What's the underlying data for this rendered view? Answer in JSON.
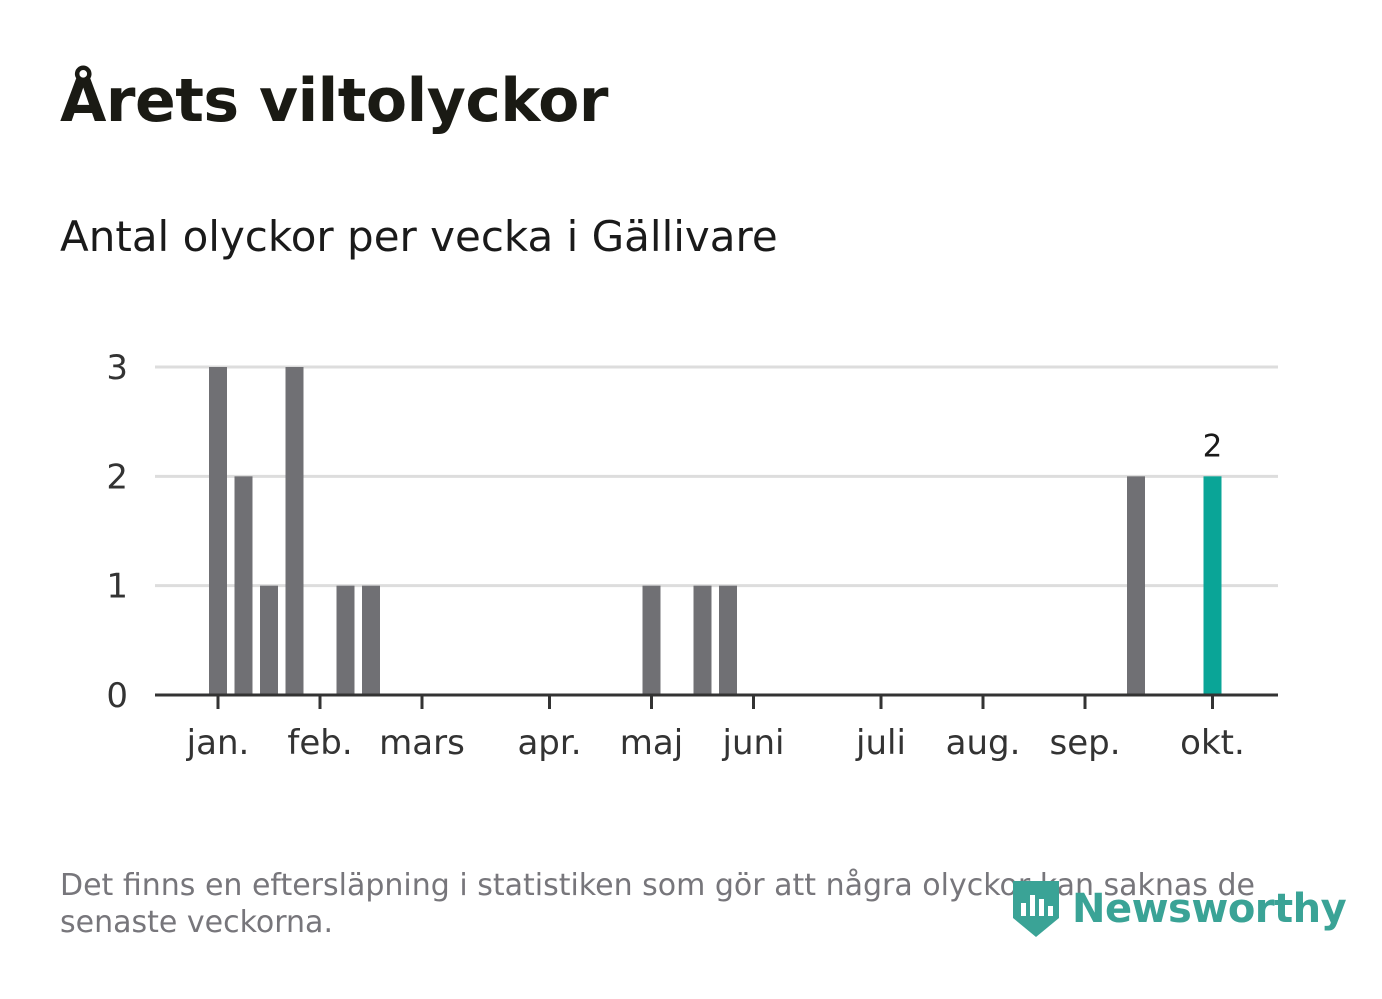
{
  "title": "Årets viltolyckor",
  "subtitle": "Antal olyckor per vecka i Gällivare",
  "footnote": "Det finns en eftersläpning i statistiken som gör att några olyckor kan saknas de senaste veckorna.",
  "logo": {
    "text": "Newsworthy",
    "icon": "newsworthy-bar-chart-shield-icon"
  },
  "colors": {
    "bar": "#707074",
    "highlight": "#0aa597",
    "grid": "#dddddd",
    "axis": "#333333",
    "logo": "#3aa396"
  },
  "chart_data": {
    "type": "bar",
    "xlabel": "",
    "ylabel": "",
    "ylim": [
      0,
      3
    ],
    "yticks": [
      0,
      1,
      2,
      3
    ],
    "grid": true,
    "x_ticks": [
      {
        "label": "jan.",
        "week": 1
      },
      {
        "label": "feb.",
        "week": 5
      },
      {
        "label": "mars",
        "week": 9
      },
      {
        "label": "apr.",
        "week": 14
      },
      {
        "label": "maj",
        "week": 18
      },
      {
        "label": "juni",
        "week": 22
      },
      {
        "label": "juli",
        "week": 27
      },
      {
        "label": "aug.",
        "week": 31
      },
      {
        "label": "sep.",
        "week": 35
      },
      {
        "label": "okt.",
        "week": 40
      }
    ],
    "weeks": [
      1,
      2,
      3,
      4,
      5,
      6,
      7,
      8,
      9,
      10,
      11,
      12,
      13,
      14,
      15,
      16,
      17,
      18,
      19,
      20,
      21,
      22,
      23,
      24,
      25,
      26,
      27,
      28,
      29,
      30,
      31,
      32,
      33,
      34,
      35,
      36,
      37,
      38,
      39,
      40
    ],
    "values": [
      3,
      2,
      1,
      3,
      0,
      1,
      1,
      0,
      0,
      0,
      0,
      0,
      0,
      0,
      0,
      0,
      0,
      1,
      0,
      1,
      1,
      0,
      0,
      0,
      0,
      0,
      0,
      0,
      0,
      0,
      0,
      0,
      0,
      0,
      0,
      0,
      2,
      0,
      0,
      2
    ],
    "highlight_week": 40,
    "highlight_label": "2"
  }
}
